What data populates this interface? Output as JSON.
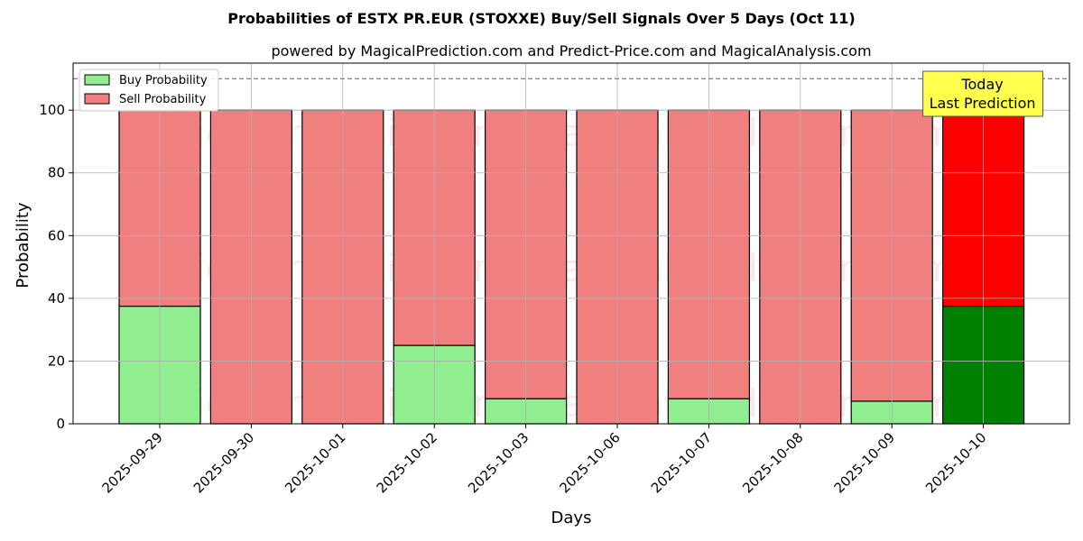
{
  "chart_data": {
    "type": "bar",
    "stacked": true,
    "title": "Probabilities of ESTX PR.EUR (STOXXE) Buy/Sell Signals Over 5 Days (Oct 11)",
    "subtitle": "powered by MagicalPrediction.com and Predict-Price.com and MagicalAnalysis.com",
    "xlabel": "Days",
    "ylabel": "Probability",
    "ylim": [
      0,
      115
    ],
    "yticks": [
      0,
      20,
      40,
      60,
      80,
      100
    ],
    "grid": true,
    "legend_position": "top-left",
    "reference_line": 110,
    "categories": [
      "2025-09-29",
      "2025-09-30",
      "2025-10-01",
      "2025-10-02",
      "2025-10-03",
      "2025-10-06",
      "2025-10-07",
      "2025-10-08",
      "2025-10-09",
      "2025-10-10"
    ],
    "series": [
      {
        "name": "Buy Probability",
        "color": "#90ee90",
        "highlight_color": "#008000",
        "values": [
          37.5,
          0,
          0,
          25,
          8,
          0,
          8,
          0,
          7.2,
          37.5
        ]
      },
      {
        "name": "Sell Probability",
        "color": "#f08080",
        "highlight_color": "#ff0000",
        "values": [
          62.5,
          100,
          100,
          75,
          92,
          100,
          92,
          100,
          92.8,
          62.5
        ]
      }
    ],
    "annotation": {
      "lines": [
        "Today",
        "Last Prediction"
      ],
      "color": "#ffff4d"
    },
    "watermarks": [
      "MagicalAnalysis.com",
      "MagicalPrediction.com"
    ]
  }
}
